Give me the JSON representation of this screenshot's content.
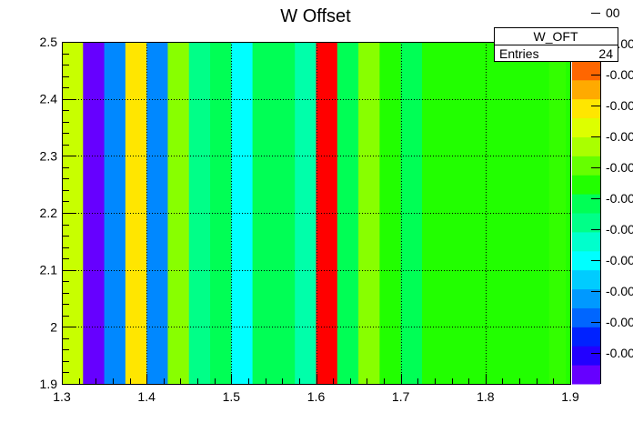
{
  "chart_data": {
    "type": "heatmap",
    "title": "W Offset",
    "xlabel": "",
    "ylabel": "",
    "xlim": [
      1.3,
      1.9
    ],
    "ylim": [
      1.9,
      2.5
    ],
    "x_ticks": [
      "1.3",
      "1.4",
      "1.5",
      "1.6",
      "1.7",
      "1.8",
      "1.9"
    ],
    "y_ticks": [
      "1.9",
      "2",
      "2.1",
      "2.2",
      "2.3",
      "2.4",
      "2.5"
    ],
    "grid": true,
    "columns": [
      {
        "x0": 1.3,
        "x1": 1.325,
        "color": "#c8ff00"
      },
      {
        "x0": 1.325,
        "x1": 1.35,
        "color": "#6600ff"
      },
      {
        "x0": 1.35,
        "x1": 1.375,
        "color": "#0088ff"
      },
      {
        "x0": 1.375,
        "x1": 1.4,
        "color": "#ffe600"
      },
      {
        "x0": 1.4,
        "x1": 1.425,
        "color": "#0088ff"
      },
      {
        "x0": 1.425,
        "x1": 1.45,
        "color": "#88ff00"
      },
      {
        "x0": 1.45,
        "x1": 1.475,
        "color": "#00ff88"
      },
      {
        "x0": 1.475,
        "x1": 1.5,
        "color": "#00ff55"
      },
      {
        "x0": 1.5,
        "x1": 1.525,
        "color": "#00ffff"
      },
      {
        "x0": 1.525,
        "x1": 1.575,
        "color": "#00ff55"
      },
      {
        "x0": 1.575,
        "x1": 1.6,
        "color": "#00ffaa"
      },
      {
        "x0": 1.6,
        "x1": 1.625,
        "color": "#ff0000"
      },
      {
        "x0": 1.625,
        "x1": 1.65,
        "color": "#00ff55"
      },
      {
        "x0": 1.65,
        "x1": 1.675,
        "color": "#88ff00"
      },
      {
        "x0": 1.675,
        "x1": 1.7,
        "color": "#22ff00"
      },
      {
        "x0": 1.7,
        "x1": 1.725,
        "color": "#00ff55"
      },
      {
        "x0": 1.725,
        "x1": 1.875,
        "color": "#22ff00"
      },
      {
        "x0": 1.875,
        "x1": 1.895,
        "color": "#33ff00"
      },
      {
        "x0": 1.895,
        "x1": 1.9,
        "color": "#22ff00"
      }
    ],
    "legend": {
      "name": "W_OFT",
      "stat_label": "Entries",
      "stat_value": "24",
      "placement": "top-right"
    },
    "color_scale": {
      "colors": [
        "#6600ff",
        "#2200ff",
        "#0022ff",
        "#0066ff",
        "#0099ff",
        "#00ccff",
        "#00ffff",
        "#00ffcc",
        "#00ff88",
        "#00ff55",
        "#22ff00",
        "#66ff00",
        "#aaff00",
        "#ddff00",
        "#ffe600",
        "#ffaa00",
        "#ff6600",
        "#ff3300"
      ],
      "labels": [
        "-0.00",
        "-0.00",
        "-0.00",
        "-0.00",
        "-0.00",
        "-0.00",
        "-0.00",
        "-0.00",
        "-0.00",
        "-0.00",
        "-0.00",
        "00"
      ]
    }
  }
}
